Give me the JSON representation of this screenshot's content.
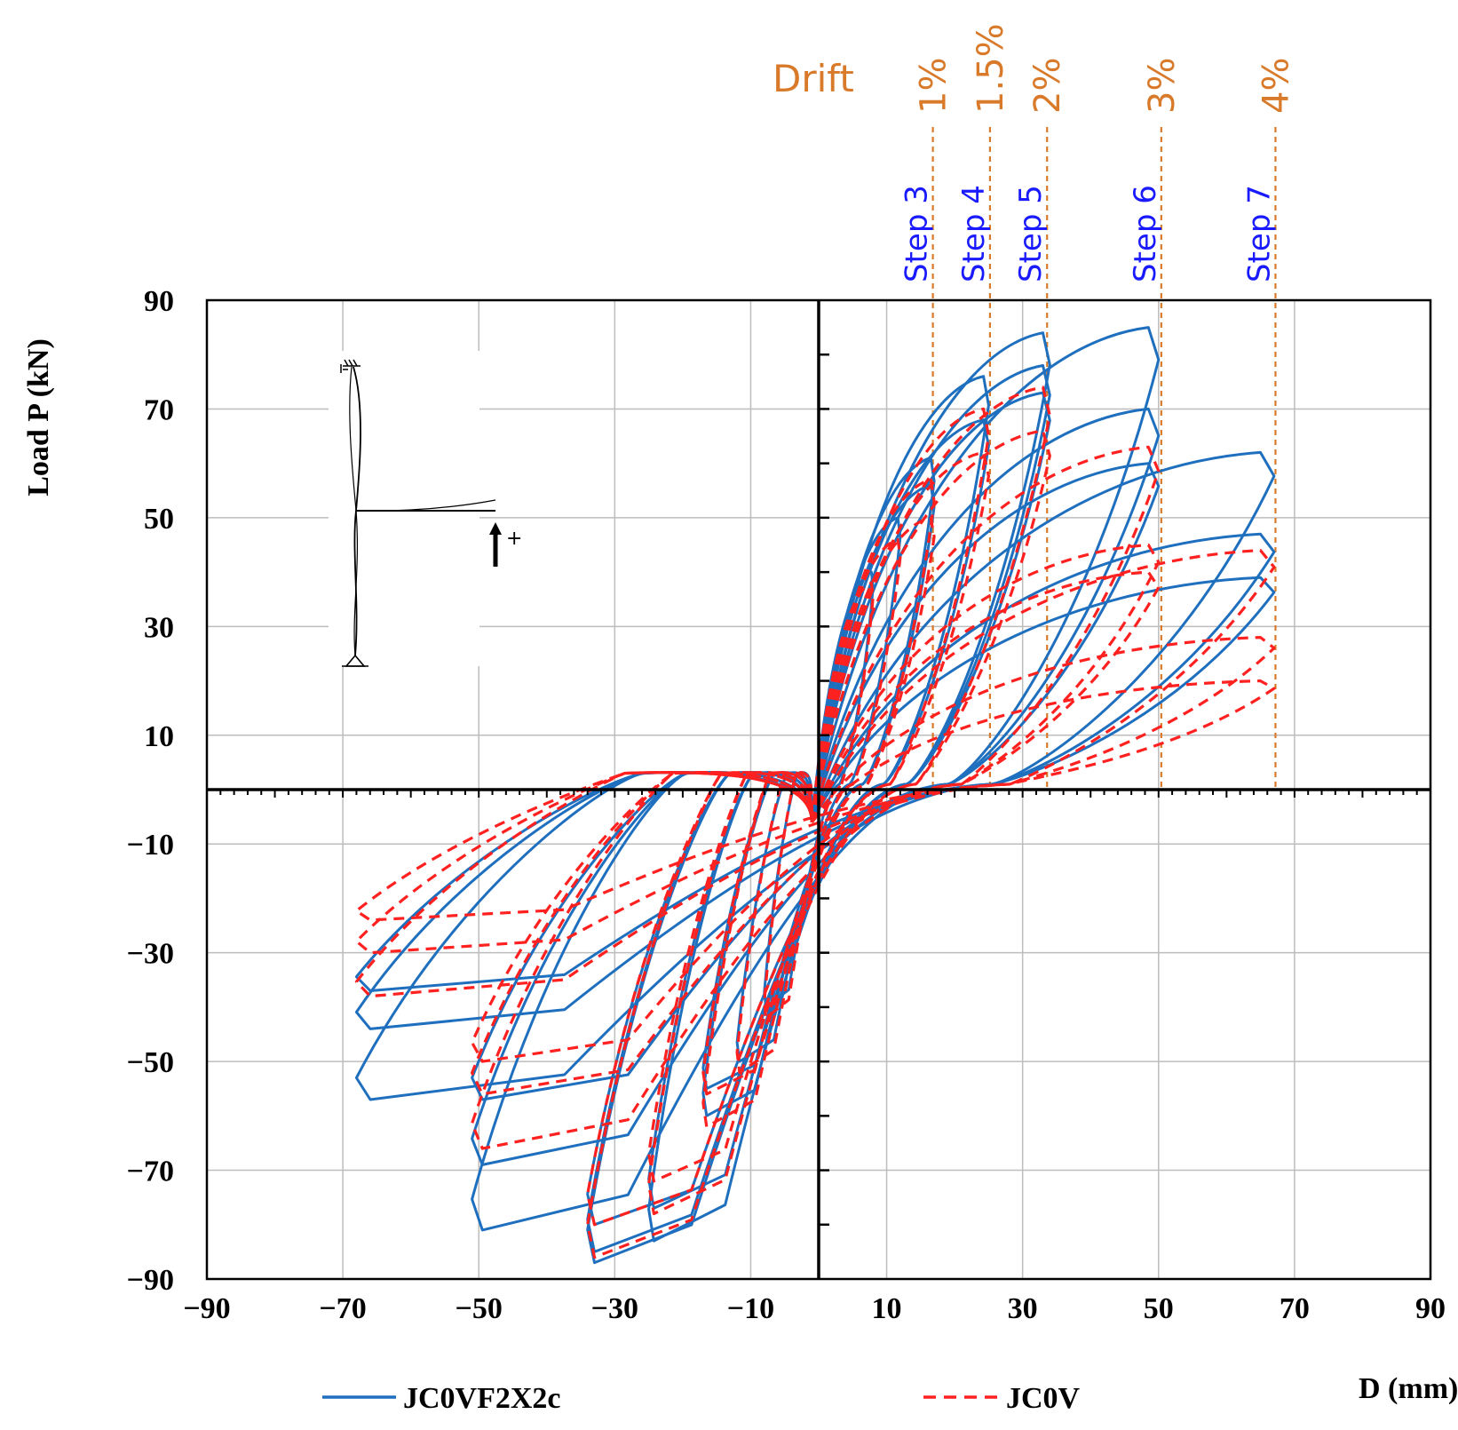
{
  "chart_data": {
    "type": "line",
    "title": "",
    "xlabel": "D (mm)",
    "ylabel": "Load P (kN)",
    "xlim": [
      -90,
      90
    ],
    "ylim": [
      -90,
      90
    ],
    "x_ticks": [
      "-90",
      "-70",
      "-50",
      "-30",
      "-10",
      "10",
      "30",
      "50",
      "70",
      "90"
    ],
    "y_ticks": [
      "90",
      "70",
      "50",
      "30",
      "10",
      "-10",
      "-30",
      "-50",
      "-70",
      "-90"
    ],
    "grid": true,
    "legend_position": "bottom",
    "drift_title": "Drift",
    "drift_markers": [
      {
        "drift": "1%",
        "step": "Step 3",
        "d": 16.8
      },
      {
        "drift": "1.5%",
        "step": "Step 4",
        "d": 25.2
      },
      {
        "drift": "2%",
        "step": "Step 5",
        "d": 33.6
      },
      {
        "drift": "3%",
        "step": "Step 6",
        "d": 50.4
      },
      {
        "drift": "4%",
        "step": "Step 7",
        "d": 67.2
      }
    ],
    "inset_sign": "+",
    "series": [
      {
        "name": "JC0VF2X2c",
        "color": "#1f6fbf",
        "style": "solid",
        "cycles": [
          {
            "pos_peak": [
              67,
              62
            ],
            "neg_peak": [
              -68,
              -57
            ]
          },
          {
            "pos_peak": [
              67,
              47
            ],
            "neg_peak": [
              -68,
              -44
            ]
          },
          {
            "pos_peak": [
              67,
              39
            ],
            "neg_peak": [
              -68,
              -37
            ]
          },
          {
            "pos_peak": [
              50,
              85
            ],
            "neg_peak": [
              -51,
              -81
            ]
          },
          {
            "pos_peak": [
              50,
              70
            ],
            "neg_peak": [
              -51,
              -69
            ]
          },
          {
            "pos_peak": [
              50,
              60
            ],
            "neg_peak": [
              -51,
              -57
            ]
          },
          {
            "pos_peak": [
              34,
              84
            ],
            "neg_peak": [
              -34,
              -87
            ]
          },
          {
            "pos_peak": [
              34,
              78
            ],
            "neg_peak": [
              -34,
              -85
            ]
          },
          {
            "pos_peak": [
              34,
              73
            ],
            "neg_peak": [
              -34,
              -80
            ]
          },
          {
            "pos_peak": [
              25,
              76
            ],
            "neg_peak": [
              -25,
              -83
            ]
          },
          {
            "pos_peak": [
              25,
              68
            ],
            "neg_peak": [
              -25,
              -77
            ]
          },
          {
            "pos_peak": [
              17,
              61
            ],
            "neg_peak": [
              -17,
              -60
            ]
          },
          {
            "pos_peak": [
              17,
              56
            ],
            "neg_peak": [
              -17,
              -55
            ]
          },
          {
            "pos_peak": [
              12,
              50
            ],
            "neg_peak": [
              -12,
              -50
            ]
          },
          {
            "pos_peak": [
              8,
              40
            ],
            "neg_peak": [
              -8,
              -40
            ]
          }
        ]
      },
      {
        "name": "JC0V",
        "color": "#ff2020",
        "style": "dashed",
        "cycles": [
          {
            "pos_peak": [
              67,
              44
            ],
            "neg_peak": [
              -68,
              -24
            ]
          },
          {
            "pos_peak": [
              67,
              28
            ],
            "neg_peak": [
              -68,
              -38
            ]
          },
          {
            "pos_peak": [
              67,
              20
            ],
            "neg_peak": [
              -68,
              -30
            ]
          },
          {
            "pos_peak": [
              50,
              63
            ],
            "neg_peak": [
              -51,
              -66
            ]
          },
          {
            "pos_peak": [
              50,
              45
            ],
            "neg_peak": [
              -51,
              -56
            ]
          },
          {
            "pos_peak": [
              50,
              40
            ],
            "neg_peak": [
              -51,
              -50
            ]
          },
          {
            "pos_peak": [
              34,
              74
            ],
            "neg_peak": [
              -34,
              -86
            ]
          },
          {
            "pos_peak": [
              34,
              66
            ],
            "neg_peak": [
              -34,
              -80
            ]
          },
          {
            "pos_peak": [
              25,
              70
            ],
            "neg_peak": [
              -25,
              -78
            ]
          },
          {
            "pos_peak": [
              25,
              62
            ],
            "neg_peak": [
              -25,
              -72
            ]
          },
          {
            "pos_peak": [
              17,
              57
            ],
            "neg_peak": [
              -17,
              -62
            ]
          },
          {
            "pos_peak": [
              17,
              50
            ],
            "neg_peak": [
              -17,
              -56
            ]
          },
          {
            "pos_peak": [
              12,
              46
            ],
            "neg_peak": [
              -12,
              -52
            ]
          },
          {
            "pos_peak": [
              8,
              38
            ],
            "neg_peak": [
              -8,
              -42
            ]
          }
        ]
      }
    ]
  }
}
